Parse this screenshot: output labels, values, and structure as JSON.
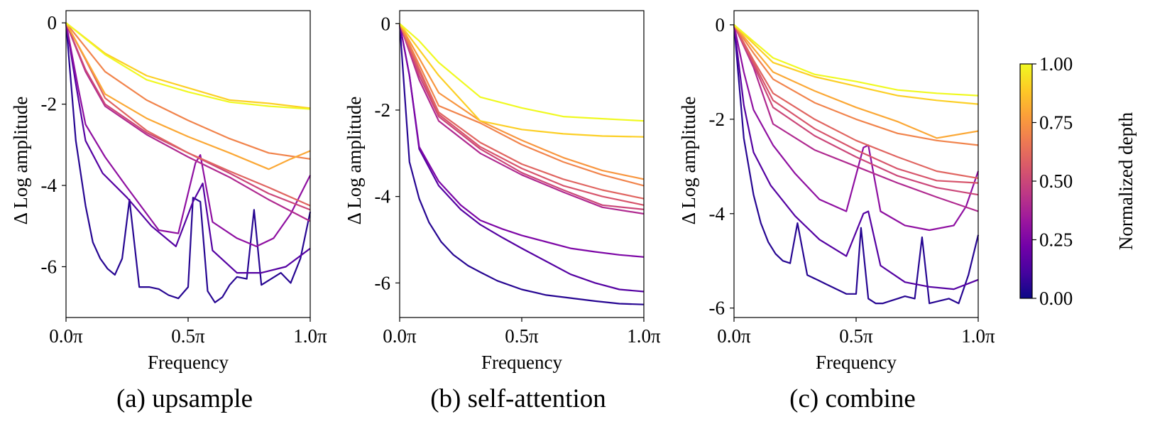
{
  "chart_data": [
    {
      "type": "line",
      "caption": "(a) upsample",
      "xlabel": "Frequency",
      "ylabel": "Δ Log amplitude",
      "xlim": [
        0,
        1
      ],
      "ylim": [
        -7.25,
        0.3
      ],
      "xticks": [
        0,
        0.5,
        1
      ],
      "xticklabels": [
        "0.0π",
        "0.5π",
        "1.0π"
      ],
      "yticks": [
        0,
        -2,
        -4,
        -6
      ],
      "yticklabels": [
        "0",
        "-2",
        "-4",
        "-6"
      ],
      "series": [
        {
          "name": "depth 0.05",
          "depth": 0.05,
          "x": [
            0,
            0.04,
            0.08,
            0.11,
            0.14,
            0.17,
            0.2,
            0.23,
            0.26,
            0.3,
            0.34,
            0.38,
            0.42,
            0.46,
            0.5,
            0.52,
            0.55,
            0.58,
            0.61,
            0.64,
            0.67,
            0.7,
            0.74,
            0.77,
            0.8,
            0.84,
            0.88,
            0.92,
            0.96,
            1.0
          ],
          "y": [
            0,
            -2.9,
            -4.5,
            -5.4,
            -5.8,
            -6.05,
            -6.2,
            -5.8,
            -4.35,
            -6.5,
            -6.5,
            -6.55,
            -6.7,
            -6.78,
            -6.5,
            -4.3,
            -4.4,
            -6.6,
            -6.88,
            -6.75,
            -6.45,
            -6.25,
            -6.3,
            -4.6,
            -6.45,
            -6.3,
            -6.15,
            -6.4,
            -5.8,
            -4.65
          ]
        },
        {
          "name": "depth 0.15",
          "depth": 0.15,
          "x": [
            0,
            0.04,
            0.08,
            0.15,
            0.25,
            0.35,
            0.45,
            0.52,
            0.56,
            0.6,
            0.7,
            0.8,
            0.9,
            1.0
          ],
          "y": [
            0,
            -1.5,
            -2.9,
            -3.7,
            -4.3,
            -5.0,
            -5.5,
            -4.4,
            -3.95,
            -5.6,
            -6.15,
            -6.15,
            -6.0,
            -5.55
          ]
        },
        {
          "name": "depth 0.3",
          "depth": 0.3,
          "x": [
            0,
            0.05,
            0.08,
            0.16,
            0.25,
            0.38,
            0.46,
            0.53,
            0.55,
            0.6,
            0.7,
            0.78,
            0.85,
            0.92,
            1.0
          ],
          "y": [
            0,
            -1.6,
            -2.5,
            -3.3,
            -4.05,
            -5.1,
            -5.18,
            -3.45,
            -3.25,
            -4.9,
            -5.3,
            -5.5,
            -5.3,
            -4.7,
            -3.75
          ]
        },
        {
          "name": "depth 0.4",
          "depth": 0.4,
          "x": [
            0,
            0.08,
            0.16,
            0.33,
            0.5,
            0.67,
            0.83,
            1.0
          ],
          "y": [
            0,
            -1.2,
            -2.05,
            -2.75,
            -3.3,
            -3.8,
            -4.35,
            -4.88
          ]
        },
        {
          "name": "depth 0.5",
          "depth": 0.5,
          "x": [
            0,
            0.08,
            0.16,
            0.33,
            0.5,
            0.67,
            0.83,
            1.0
          ],
          "y": [
            0,
            -1.15,
            -2.0,
            -2.7,
            -3.2,
            -3.7,
            -4.2,
            -4.6
          ]
        },
        {
          "name": "depth 0.6",
          "depth": 0.6,
          "x": [
            0,
            0.08,
            0.16,
            0.33,
            0.5,
            0.67,
            0.83,
            1.0
          ],
          "y": [
            0,
            -0.9,
            -1.85,
            -2.65,
            -3.2,
            -3.65,
            -4.05,
            -4.5
          ]
        },
        {
          "name": "depth 0.7",
          "depth": 0.7,
          "x": [
            0,
            0.16,
            0.33,
            0.5,
            0.67,
            0.83,
            1.0
          ],
          "y": [
            0,
            -1.2,
            -1.9,
            -2.4,
            -2.85,
            -3.2,
            -3.35
          ]
        },
        {
          "name": "depth 0.8",
          "depth": 0.8,
          "x": [
            0,
            0.16,
            0.33,
            0.5,
            0.67,
            0.83,
            0.92,
            1.0
          ],
          "y": [
            0,
            -1.75,
            -2.35,
            -2.8,
            -3.2,
            -3.6,
            -3.35,
            -3.15
          ]
        },
        {
          "name": "depth 0.9",
          "depth": 0.9,
          "x": [
            0,
            0.16,
            0.33,
            0.5,
            0.67,
            0.83,
            1.0
          ],
          "y": [
            0,
            -0.75,
            -1.3,
            -1.6,
            -1.9,
            -1.98,
            -2.1
          ]
        },
        {
          "name": "depth 1.0",
          "depth": 1.0,
          "x": [
            0,
            0.16,
            0.33,
            0.5,
            0.67,
            0.83,
            1.0
          ],
          "y": [
            0,
            -0.78,
            -1.4,
            -1.7,
            -1.95,
            -2.05,
            -2.12
          ]
        }
      ]
    },
    {
      "type": "line",
      "caption": "(b) self-attention",
      "xlabel": "Frequency",
      "ylabel": "Δ Log amplitude",
      "xlim": [
        0,
        1
      ],
      "ylim": [
        -6.8,
        0.3
      ],
      "xticks": [
        0,
        0.5,
        1
      ],
      "xticklabels": [
        "0.0π",
        "0.5π",
        "1.0π"
      ],
      "yticks": [
        0,
        -2,
        -4,
        -6
      ],
      "yticklabels": [
        "0",
        "-2",
        "-4",
        "-6"
      ],
      "series": [
        {
          "name": "depth 0.05",
          "depth": 0.05,
          "x": [
            0,
            0.04,
            0.08,
            0.12,
            0.17,
            0.22,
            0.28,
            0.33,
            0.4,
            0.5,
            0.6,
            0.7,
            0.8,
            0.9,
            1.0
          ],
          "y": [
            0,
            -3.2,
            -4.05,
            -4.6,
            -5.05,
            -5.35,
            -5.6,
            -5.75,
            -5.95,
            -6.15,
            -6.28,
            -6.35,
            -6.42,
            -6.48,
            -6.5
          ]
        },
        {
          "name": "depth 0.15",
          "depth": 0.15,
          "x": [
            0,
            0.04,
            0.08,
            0.16,
            0.25,
            0.33,
            0.42,
            0.5,
            0.6,
            0.7,
            0.8,
            0.9,
            1.0
          ],
          "y": [
            0,
            -1.2,
            -2.9,
            -3.75,
            -4.3,
            -4.65,
            -4.95,
            -5.2,
            -5.5,
            -5.8,
            -6.0,
            -6.15,
            -6.2
          ]
        },
        {
          "name": "depth 0.25",
          "depth": 0.25,
          "x": [
            0,
            0.04,
            0.08,
            0.16,
            0.25,
            0.33,
            0.42,
            0.5,
            0.6,
            0.7,
            0.8,
            0.9,
            1.0
          ],
          "y": [
            0,
            -1.2,
            -2.85,
            -3.65,
            -4.2,
            -4.55,
            -4.75,
            -4.9,
            -5.05,
            -5.2,
            -5.28,
            -5.35,
            -5.4
          ]
        },
        {
          "name": "depth 0.4",
          "depth": 0.4,
          "x": [
            0,
            0.08,
            0.16,
            0.33,
            0.5,
            0.67,
            0.83,
            1.0
          ],
          "y": [
            0,
            -1.3,
            -2.25,
            -3.0,
            -3.5,
            -3.9,
            -4.25,
            -4.4
          ]
        },
        {
          "name": "depth 0.5",
          "depth": 0.5,
          "x": [
            0,
            0.08,
            0.16,
            0.33,
            0.5,
            0.67,
            0.83,
            1.0
          ],
          "y": [
            0,
            -1.2,
            -2.15,
            -2.9,
            -3.45,
            -3.85,
            -4.2,
            -4.3
          ]
        },
        {
          "name": "depth 0.55",
          "depth": 0.55,
          "x": [
            0,
            0.08,
            0.16,
            0.33,
            0.5,
            0.67,
            0.83,
            1.0
          ],
          "y": [
            0,
            -1.1,
            -2.1,
            -2.85,
            -3.35,
            -3.75,
            -4.0,
            -4.2
          ]
        },
        {
          "name": "depth 0.6",
          "depth": 0.6,
          "x": [
            0,
            0.08,
            0.16,
            0.33,
            0.5,
            0.67,
            0.83,
            1.0
          ],
          "y": [
            0,
            -1.05,
            -2.05,
            -2.75,
            -3.25,
            -3.6,
            -3.85,
            -4.05
          ]
        },
        {
          "name": "depth 0.7",
          "depth": 0.7,
          "x": [
            0,
            0.08,
            0.16,
            0.33,
            0.5,
            0.67,
            0.83,
            1.0
          ],
          "y": [
            0,
            -0.95,
            -1.9,
            -2.3,
            -2.8,
            -3.2,
            -3.5,
            -3.75
          ]
        },
        {
          "name": "depth 0.75",
          "depth": 0.75,
          "x": [
            0,
            0.08,
            0.16,
            0.33,
            0.5,
            0.67,
            0.83,
            1.0
          ],
          "y": [
            0,
            -0.8,
            -1.6,
            -2.25,
            -2.7,
            -3.1,
            -3.4,
            -3.6
          ]
        },
        {
          "name": "depth 0.9",
          "depth": 0.9,
          "x": [
            0,
            0.08,
            0.16,
            0.33,
            0.5,
            0.67,
            0.83,
            1.0
          ],
          "y": [
            0,
            -0.6,
            -1.2,
            -2.25,
            -2.45,
            -2.55,
            -2.6,
            -2.62
          ]
        },
        {
          "name": "depth 1.0",
          "depth": 1.0,
          "x": [
            0,
            0.08,
            0.16,
            0.33,
            0.5,
            0.67,
            0.83,
            1.0
          ],
          "y": [
            0,
            -0.4,
            -0.9,
            -1.7,
            -1.95,
            -2.15,
            -2.2,
            -2.25
          ]
        }
      ]
    },
    {
      "type": "line",
      "caption": "(c) combine",
      "xlabel": "Frequency",
      "ylabel": "Δ Log amplitude",
      "xlim": [
        0,
        1
      ],
      "ylim": [
        -6.2,
        0.3
      ],
      "xticks": [
        0,
        0.5,
        1
      ],
      "xticklabels": [
        "0.0π",
        "0.5π",
        "1.0π"
      ],
      "yticks": [
        0,
        -2,
        -4,
        -6
      ],
      "yticklabels": [
        "0",
        "-2",
        "-4",
        "-6"
      ],
      "series": [
        {
          "name": "depth 0.05",
          "depth": 0.05,
          "x": [
            0,
            0.04,
            0.08,
            0.11,
            0.14,
            0.17,
            0.2,
            0.23,
            0.26,
            0.3,
            0.34,
            0.38,
            0.42,
            0.46,
            0.5,
            0.52,
            0.55,
            0.58,
            0.61,
            0.64,
            0.67,
            0.7,
            0.74,
            0.77,
            0.8,
            0.84,
            0.88,
            0.92,
            0.96,
            1.0
          ],
          "y": [
            0,
            -2.4,
            -3.6,
            -4.2,
            -4.6,
            -4.85,
            -5.0,
            -5.05,
            -4.2,
            -5.3,
            -5.4,
            -5.5,
            -5.6,
            -5.7,
            -5.7,
            -4.3,
            -5.8,
            -5.9,
            -5.9,
            -5.85,
            -5.8,
            -5.75,
            -5.8,
            -4.5,
            -5.9,
            -5.85,
            -5.8,
            -5.9,
            -5.3,
            -4.45
          ]
        },
        {
          "name": "depth 0.15",
          "depth": 0.15,
          "x": [
            0,
            0.04,
            0.08,
            0.15,
            0.25,
            0.35,
            0.46,
            0.53,
            0.55,
            0.6,
            0.7,
            0.8,
            0.9,
            1.0
          ],
          "y": [
            0,
            -1.7,
            -2.7,
            -3.4,
            -4.05,
            -4.55,
            -4.9,
            -4.0,
            -3.95,
            -5.1,
            -5.45,
            -5.55,
            -5.6,
            -5.4
          ]
        },
        {
          "name": "depth 0.3",
          "depth": 0.3,
          "x": [
            0,
            0.04,
            0.08,
            0.16,
            0.25,
            0.35,
            0.46,
            0.53,
            0.55,
            0.6,
            0.7,
            0.8,
            0.9,
            0.95,
            1.0
          ],
          "y": [
            0,
            -1.0,
            -1.8,
            -2.55,
            -3.15,
            -3.7,
            -3.95,
            -2.6,
            -2.55,
            -3.95,
            -4.25,
            -4.35,
            -4.25,
            -3.85,
            -3.1
          ]
        },
        {
          "name": "depth 0.4",
          "depth": 0.4,
          "x": [
            0,
            0.08,
            0.16,
            0.33,
            0.5,
            0.67,
            0.83,
            1.0
          ],
          "y": [
            0,
            -0.9,
            -2.1,
            -2.65,
            -3.0,
            -3.35,
            -3.65,
            -3.95
          ]
        },
        {
          "name": "depth 0.5",
          "depth": 0.5,
          "x": [
            0,
            0.08,
            0.16,
            0.33,
            0.5,
            0.67,
            0.83,
            1.0
          ],
          "y": [
            0,
            -0.85,
            -1.75,
            -2.35,
            -2.8,
            -3.2,
            -3.45,
            -3.6
          ]
        },
        {
          "name": "depth 0.55",
          "depth": 0.55,
          "x": [
            0,
            0.08,
            0.16,
            0.33,
            0.5,
            0.67,
            0.83,
            1.0
          ],
          "y": [
            0,
            -0.8,
            -1.6,
            -2.2,
            -2.65,
            -3.05,
            -3.3,
            -3.35
          ]
        },
        {
          "name": "depth 0.6",
          "depth": 0.6,
          "x": [
            0,
            0.08,
            0.16,
            0.33,
            0.5,
            0.67,
            0.83,
            1.0
          ],
          "y": [
            0,
            -0.75,
            -1.45,
            -2.0,
            -2.45,
            -2.8,
            -3.1,
            -3.25
          ]
        },
        {
          "name": "depth 0.7",
          "depth": 0.7,
          "x": [
            0,
            0.08,
            0.16,
            0.33,
            0.5,
            0.67,
            0.83,
            1.0
          ],
          "y": [
            0,
            -0.6,
            -1.15,
            -1.65,
            -2.0,
            -2.3,
            -2.45,
            -2.55
          ]
        },
        {
          "name": "depth 0.8",
          "depth": 0.8,
          "x": [
            0,
            0.08,
            0.16,
            0.33,
            0.5,
            0.67,
            0.83,
            1.0
          ],
          "y": [
            0,
            -0.5,
            -1.0,
            -1.4,
            -1.75,
            -2.05,
            -2.4,
            -2.25
          ]
        },
        {
          "name": "depth 0.9",
          "depth": 0.9,
          "x": [
            0,
            0.08,
            0.16,
            0.33,
            0.5,
            0.67,
            0.83,
            1.0
          ],
          "y": [
            0,
            -0.4,
            -0.8,
            -1.1,
            -1.3,
            -1.5,
            -1.6,
            -1.68
          ]
        },
        {
          "name": "depth 1.0",
          "depth": 1.0,
          "x": [
            0,
            0.08,
            0.16,
            0.33,
            0.5,
            0.67,
            0.83,
            1.0
          ],
          "y": [
            0,
            -0.35,
            -0.7,
            -1.05,
            -1.2,
            -1.38,
            -1.45,
            -1.5
          ]
        }
      ]
    }
  ],
  "colorbar": {
    "label": "Normalized depth",
    "colormap": "plasma",
    "range": [
      0,
      1
    ],
    "ticks": [
      0,
      0.25,
      0.5,
      0.75,
      1.0
    ],
    "ticklabels": [
      "0.00",
      "0.25",
      "0.50",
      "0.75",
      "1.00"
    ]
  },
  "colors": {
    "plasma_stops": [
      "#0d0887",
      "#46039f",
      "#7201a8",
      "#9c179e",
      "#bd3786",
      "#d8576b",
      "#ed7953",
      "#fb9f3a",
      "#fdca26",
      "#f0f921"
    ]
  }
}
